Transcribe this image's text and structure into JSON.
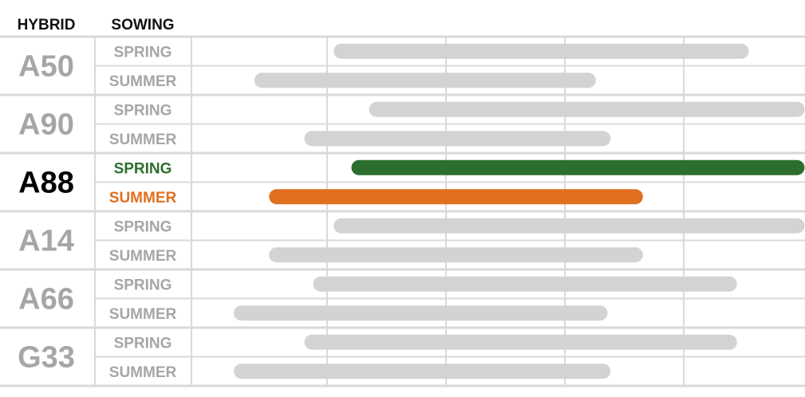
{
  "chart_data": {
    "type": "gantt-bar",
    "title": "",
    "headers": {
      "hybrid": "HYBRID",
      "sowing": "SOWING"
    },
    "x_range": [
      0,
      100
    ],
    "grid": true,
    "highlighted": "A88",
    "colors": {
      "muted_bar": "#d3d3d3",
      "muted_text": "#a6a6a6",
      "highlight_text": "#000000",
      "spring_highlight": "#2d6e2e",
      "summer_highlight": "#e07020",
      "grid": "#d9d9d9"
    },
    "groups": [
      {
        "hybrid": "A50",
        "rows": [
          {
            "sowing": "SPRING",
            "start": 22.5,
            "end": 90.5
          },
          {
            "sowing": "SUMMER",
            "start": 9.0,
            "end": 64.5
          }
        ]
      },
      {
        "hybrid": "A90",
        "rows": [
          {
            "sowing": "SPRING",
            "start": 28.5,
            "end": 100
          },
          {
            "sowing": "SUMMER",
            "start": 17.5,
            "end": 67.0
          }
        ]
      },
      {
        "hybrid": "A88",
        "rows": [
          {
            "sowing": "SPRING",
            "start": 25.5,
            "end": 100
          },
          {
            "sowing": "SUMMER",
            "start": 11.5,
            "end": 72.5
          }
        ]
      },
      {
        "hybrid": "A14",
        "rows": [
          {
            "sowing": "SPRING",
            "start": 22.5,
            "end": 100
          },
          {
            "sowing": "SUMMER",
            "start": 11.5,
            "end": 72.5
          }
        ]
      },
      {
        "hybrid": "A66",
        "rows": [
          {
            "sowing": "SPRING",
            "start": 19.0,
            "end": 88.5
          },
          {
            "sowing": "SUMMER",
            "start": 5.5,
            "end": 66.5
          }
        ]
      },
      {
        "hybrid": "G33",
        "rows": [
          {
            "sowing": "SPRING",
            "start": 17.5,
            "end": 88.5
          },
          {
            "sowing": "SUMMER",
            "start": 5.5,
            "end": 67.0
          }
        ]
      }
    ]
  }
}
